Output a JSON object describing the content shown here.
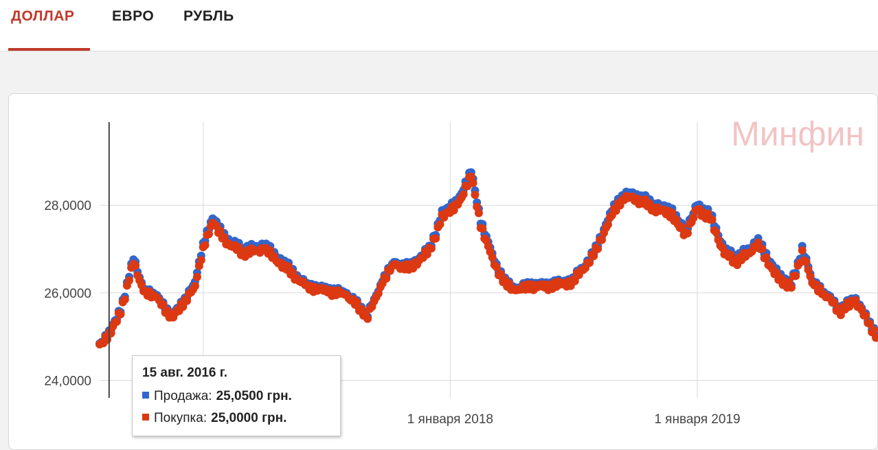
{
  "tabs": [
    {
      "label": "ДОЛЛАР",
      "active": true
    },
    {
      "label": "ЕВРО",
      "active": false
    },
    {
      "label": "РУБЛЬ",
      "active": false
    }
  ],
  "colors": {
    "accent": "#c0392b",
    "sell": "#3366cc",
    "buy": "#dc3912",
    "watermark": "#f2c4c4"
  },
  "watermark": "Минфин",
  "tooltip": {
    "date": "15 авг. 2016 г.",
    "sell_label": "Продажа:",
    "sell_value": "25,0500 грн.",
    "buy_label": "Покупка:",
    "buy_value": "25,0000 грн."
  },
  "chart_data": {
    "type": "scatter",
    "y_ticks": [
      "24,0000",
      "26,0000",
      "28,0000"
    ],
    "y_tick_values": [
      24,
      26,
      28
    ],
    "x_tick_labels": [
      "1 января 2018",
      "1 января 2019"
    ],
    "x_tick_dates": [
      "2018-01-01",
      "2019-01-01"
    ],
    "xlim": [
      "2016-08-01",
      "2019-09-25"
    ],
    "ylim": [
      23.6,
      29.9
    ],
    "cursor_date": "2016-08-15",
    "grid": true,
    "series": [
      {
        "name": "Продажа",
        "color": "#3366cc",
        "points": [
          [
            "2016-08-01",
            24.8
          ],
          [
            "2016-08-15",
            25.05
          ],
          [
            "2016-09-01",
            25.6
          ],
          [
            "2016-09-20",
            26.8
          ],
          [
            "2016-10-05",
            26.1
          ],
          [
            "2016-10-25",
            25.9
          ],
          [
            "2016-11-15",
            25.5
          ],
          [
            "2016-12-05",
            25.8
          ],
          [
            "2016-12-20",
            26.3
          ],
          [
            "2017-01-01",
            27.1
          ],
          [
            "2017-01-15",
            27.7
          ],
          [
            "2017-02-01",
            27.3
          ],
          [
            "2017-03-01",
            27.0
          ],
          [
            "2017-04-01",
            27.1
          ],
          [
            "2017-05-01",
            26.7
          ],
          [
            "2017-06-01",
            26.2
          ],
          [
            "2017-07-01",
            26.1
          ],
          [
            "2017-08-01",
            26.0
          ],
          [
            "2017-09-01",
            25.5
          ],
          [
            "2017-09-20",
            26.2
          ],
          [
            "2017-10-10",
            26.7
          ],
          [
            "2017-11-01",
            26.6
          ],
          [
            "2017-12-01",
            27.0
          ],
          [
            "2017-12-20",
            27.8
          ],
          [
            "2018-01-15",
            28.2
          ],
          [
            "2018-02-01",
            28.8
          ],
          [
            "2018-02-15",
            27.6
          ],
          [
            "2018-03-01",
            27.0
          ],
          [
            "2018-03-20",
            26.3
          ],
          [
            "2018-04-10",
            26.1
          ],
          [
            "2018-05-01",
            26.2
          ],
          [
            "2018-06-01",
            26.2
          ],
          [
            "2018-07-01",
            26.3
          ],
          [
            "2018-08-01",
            26.9
          ],
          [
            "2018-08-25",
            27.8
          ],
          [
            "2018-09-15",
            28.3
          ],
          [
            "2018-10-10",
            28.2
          ],
          [
            "2018-11-01",
            28.0
          ],
          [
            "2018-11-25",
            27.9
          ],
          [
            "2018-12-15",
            27.4
          ],
          [
            "2019-01-01",
            28.0
          ],
          [
            "2019-01-20",
            27.8
          ],
          [
            "2019-02-10",
            27.0
          ],
          [
            "2019-03-01",
            26.8
          ],
          [
            "2019-04-01",
            27.2
          ],
          [
            "2019-05-01",
            26.4
          ],
          [
            "2019-05-20",
            26.2
          ],
          [
            "2019-06-05",
            27.0
          ],
          [
            "2019-06-20",
            26.3
          ],
          [
            "2019-07-10",
            26.0
          ],
          [
            "2019-08-01",
            25.6
          ],
          [
            "2019-08-20",
            25.9
          ],
          [
            "2019-09-10",
            25.4
          ],
          [
            "2019-09-25",
            25.0
          ]
        ]
      },
      {
        "name": "Покупка",
        "color": "#dc3912",
        "points": [
          [
            "2016-08-01",
            24.78
          ],
          [
            "2016-08-15",
            25.0
          ],
          [
            "2016-09-01",
            25.55
          ],
          [
            "2016-09-20",
            26.7
          ],
          [
            "2016-10-05",
            26.05
          ],
          [
            "2016-10-25",
            25.85
          ],
          [
            "2016-11-15",
            25.45
          ],
          [
            "2016-12-05",
            25.75
          ],
          [
            "2016-12-20",
            26.2
          ],
          [
            "2017-01-01",
            27.0
          ],
          [
            "2017-01-15",
            27.6
          ],
          [
            "2017-02-01",
            27.2
          ],
          [
            "2017-03-01",
            26.9
          ],
          [
            "2017-04-01",
            27.0
          ],
          [
            "2017-05-01",
            26.6
          ],
          [
            "2017-06-01",
            26.15
          ],
          [
            "2017-07-01",
            26.05
          ],
          [
            "2017-08-01",
            25.95
          ],
          [
            "2017-09-01",
            25.45
          ],
          [
            "2017-09-20",
            26.15
          ],
          [
            "2017-10-10",
            26.65
          ],
          [
            "2017-11-01",
            26.55
          ],
          [
            "2017-12-01",
            26.95
          ],
          [
            "2017-12-20",
            27.7
          ],
          [
            "2018-01-15",
            28.1
          ],
          [
            "2018-02-01",
            28.7
          ],
          [
            "2018-02-15",
            27.5
          ],
          [
            "2018-03-01",
            26.9
          ],
          [
            "2018-03-20",
            26.25
          ],
          [
            "2018-04-10",
            26.05
          ],
          [
            "2018-05-01",
            26.15
          ],
          [
            "2018-06-01",
            26.15
          ],
          [
            "2018-07-01",
            26.25
          ],
          [
            "2018-08-01",
            26.85
          ],
          [
            "2018-08-25",
            27.7
          ],
          [
            "2018-09-15",
            28.2
          ],
          [
            "2018-10-10",
            28.1
          ],
          [
            "2018-11-01",
            27.9
          ],
          [
            "2018-11-25",
            27.8
          ],
          [
            "2018-12-15",
            27.3
          ],
          [
            "2019-01-01",
            27.9
          ],
          [
            "2019-01-20",
            27.7
          ],
          [
            "2019-02-10",
            26.9
          ],
          [
            "2019-03-01",
            26.7
          ],
          [
            "2019-04-01",
            27.1
          ],
          [
            "2019-05-01",
            26.3
          ],
          [
            "2019-05-20",
            26.15
          ],
          [
            "2019-06-05",
            26.9
          ],
          [
            "2019-06-20",
            26.25
          ],
          [
            "2019-07-10",
            25.95
          ],
          [
            "2019-08-01",
            25.55
          ],
          [
            "2019-08-20",
            25.85
          ],
          [
            "2019-09-10",
            25.35
          ],
          [
            "2019-09-25",
            24.95
          ]
        ]
      }
    ]
  }
}
